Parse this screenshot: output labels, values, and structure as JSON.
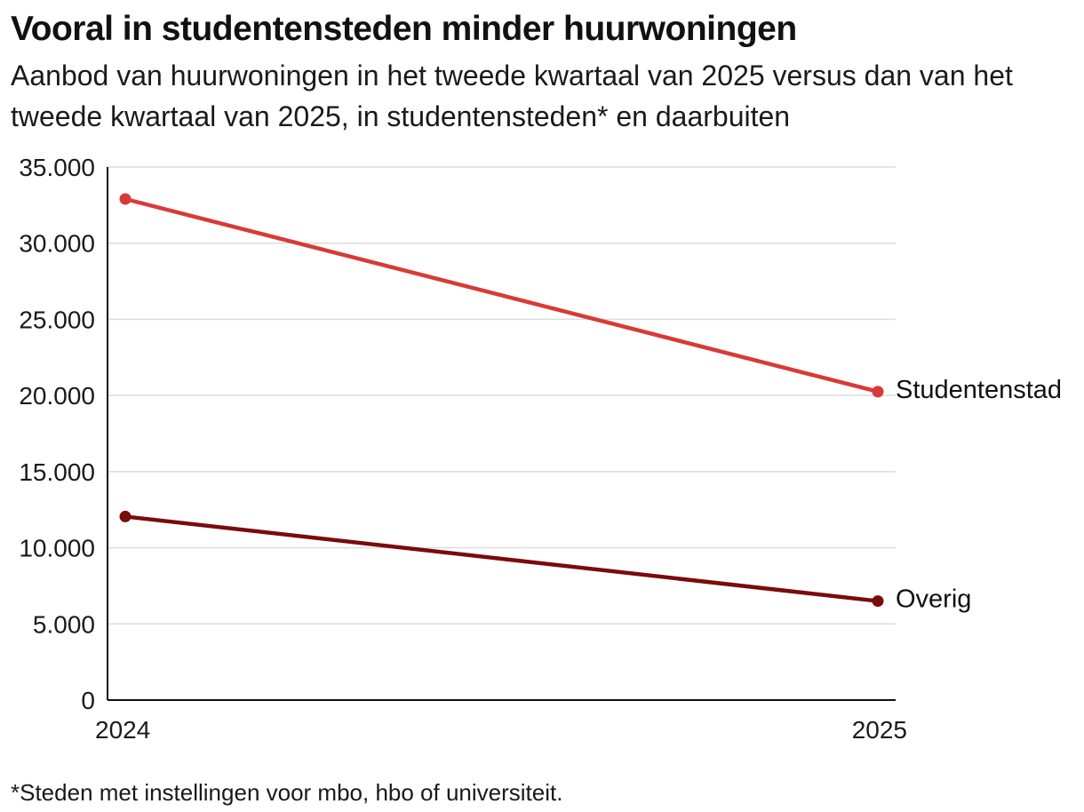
{
  "header": {
    "title": "Vooral in studentensteden minder huurwoningen",
    "subtitle": "Aanbod van huurwoningen in het tweede kwartaal van 2025 versus dan van het tweede kwartaal van 2025, in studentensteden* en daarbuiten"
  },
  "footnote": "*Steden met instellingen voor mbo, hbo of universiteit.",
  "chart_data": {
    "type": "line",
    "title": "Vooral in studentensteden minder huurwoningen",
    "subtitle": "Aanbod van huurwoningen in het tweede kwartaal van 2025 versus dan van het tweede kwartaal van 2025, in studentensteden* en daarbuiten",
    "xlabel": "",
    "ylabel": "",
    "categories": [
      "2024",
      "2025"
    ],
    "ylim": [
      0,
      35000
    ],
    "y_ticks": [
      0,
      5000,
      10000,
      15000,
      20000,
      25000,
      30000,
      35000
    ],
    "y_tick_labels": [
      "0",
      "5.000",
      "10.000",
      "15.000",
      "20.000",
      "25.000",
      "30.000",
      "35.000"
    ],
    "grid": "horizontal",
    "legend": "direct labels at line ends",
    "series": [
      {
        "name": "Studentenstad",
        "values": [
          32900,
          20250
        ],
        "color": "#d93a36"
      },
      {
        "name": "Overig",
        "values": [
          12050,
          6500
        ],
        "color": "#7a0b0b"
      }
    ]
  }
}
